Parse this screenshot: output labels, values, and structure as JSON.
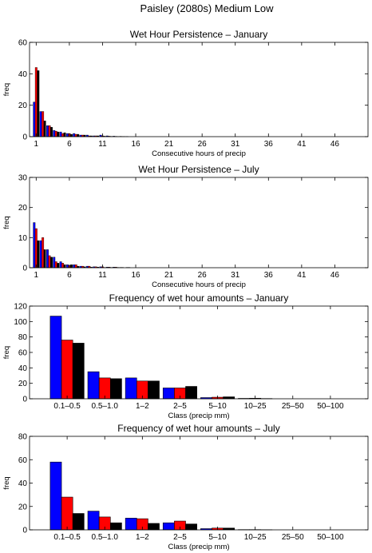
{
  "figure": {
    "title": "Paisley (2080s) Medium Low"
  },
  "colors": {
    "series": [
      "#0000ff",
      "#ff0000",
      "#000000"
    ],
    "axis": "#000000"
  },
  "chart_data": [
    {
      "type": "bar",
      "title": "Wet Hour Persistence – January",
      "xlabel": "Consecutive hours of precip",
      "ylabel": "freq",
      "x": [
        1,
        2,
        3,
        4,
        5,
        6,
        7,
        8,
        9,
        10,
        11,
        12,
        13,
        14,
        15
      ],
      "xticks": [
        "1",
        "6",
        "11",
        "16",
        "21",
        "26",
        "31",
        "36",
        "41",
        "46"
      ],
      "xlim": [
        0,
        51
      ],
      "yticks": [
        "0",
        "20",
        "40",
        "60"
      ],
      "ylim": [
        0,
        60
      ],
      "series": [
        {
          "values": [
            22,
            16,
            7,
            4,
            3,
            2,
            2,
            1,
            1,
            0.5,
            1,
            0.5,
            0.3,
            0.2,
            0.1
          ]
        },
        {
          "values": [
            44,
            16,
            7,
            3.5,
            2,
            2,
            1.5,
            1,
            0.5,
            0.5,
            0.5,
            0.3,
            0.2,
            0.1,
            0
          ]
        },
        {
          "values": [
            42,
            10,
            6,
            3,
            2.5,
            1.5,
            1.5,
            1,
            0.5,
            0.5,
            0.3,
            0.2,
            0.1,
            0.1,
            0
          ]
        }
      ]
    },
    {
      "type": "bar",
      "title": "Wet Hour Persistence – July",
      "xlabel": "Consecutive hours of precip",
      "ylabel": "freq",
      "x": [
        1,
        2,
        3,
        4,
        5,
        6,
        7,
        8,
        9,
        10,
        11,
        12,
        13,
        14,
        15
      ],
      "xticks": [
        "1",
        "6",
        "11",
        "16",
        "21",
        "26",
        "31",
        "36",
        "41",
        "46"
      ],
      "xlim": [
        0,
        51
      ],
      "yticks": [
        "0",
        "10",
        "20",
        "30"
      ],
      "ylim": [
        0,
        30
      ],
      "series": [
        {
          "values": [
            15,
            9,
            6,
            3.5,
            2,
            1,
            1,
            0.5,
            0.5,
            0.3,
            0.3,
            0.2,
            0.2,
            0.1,
            0.1
          ]
        },
        {
          "values": [
            13,
            10,
            4,
            2,
            1.5,
            0.7,
            1,
            0.5,
            0.5,
            0.3,
            0.3,
            0.2,
            0.2,
            0.1,
            0.1
          ]
        },
        {
          "values": [
            9,
            6,
            3.5,
            1.5,
            1,
            1,
            0.5,
            0.3,
            0.2,
            0.2,
            0.1,
            0.1,
            0.1,
            0,
            0
          ]
        }
      ]
    },
    {
      "type": "bar",
      "title": "Frequency of wet hour amounts – January",
      "xlabel": "Class (precip mm)",
      "ylabel": "freq",
      "categories": [
        "0.1–0.5",
        "0.5–1.0",
        "1–2",
        "2–5",
        "5–10",
        "10–25",
        "25–50",
        "50–100"
      ],
      "yticks": [
        "0",
        "20",
        "40",
        "60",
        "80",
        "100",
        "120"
      ],
      "ylim": [
        0,
        120
      ],
      "series": [
        {
          "values": [
            107,
            35,
            27,
            14,
            1.5,
            0.5,
            0,
            0
          ]
        },
        {
          "values": [
            76,
            27,
            23,
            14,
            2,
            0.7,
            0,
            0
          ]
        },
        {
          "values": [
            72,
            26,
            23,
            16,
            2.5,
            0.3,
            0,
            0
          ]
        }
      ]
    },
    {
      "type": "bar",
      "title": "Frequency of wet hour amounts – July",
      "xlabel": "Class (precip mm)",
      "ylabel": "freq",
      "categories": [
        "0.1–0.5",
        "0.5–1.0",
        "1–2",
        "2–5",
        "5–10",
        "10–25",
        "25–50",
        "50–100"
      ],
      "yticks": [
        "0",
        "20",
        "40",
        "60",
        "80"
      ],
      "ylim": [
        0,
        80
      ],
      "series": [
        {
          "values": [
            58,
            16,
            10,
            6,
            1,
            0.2,
            0,
            0
          ]
        },
        {
          "values": [
            28,
            11,
            9.5,
            7.5,
            1.5,
            0.2,
            0,
            0
          ]
        },
        {
          "values": [
            14,
            6,
            5.5,
            5,
            1.5,
            0.1,
            0,
            0
          ]
        }
      ]
    }
  ]
}
